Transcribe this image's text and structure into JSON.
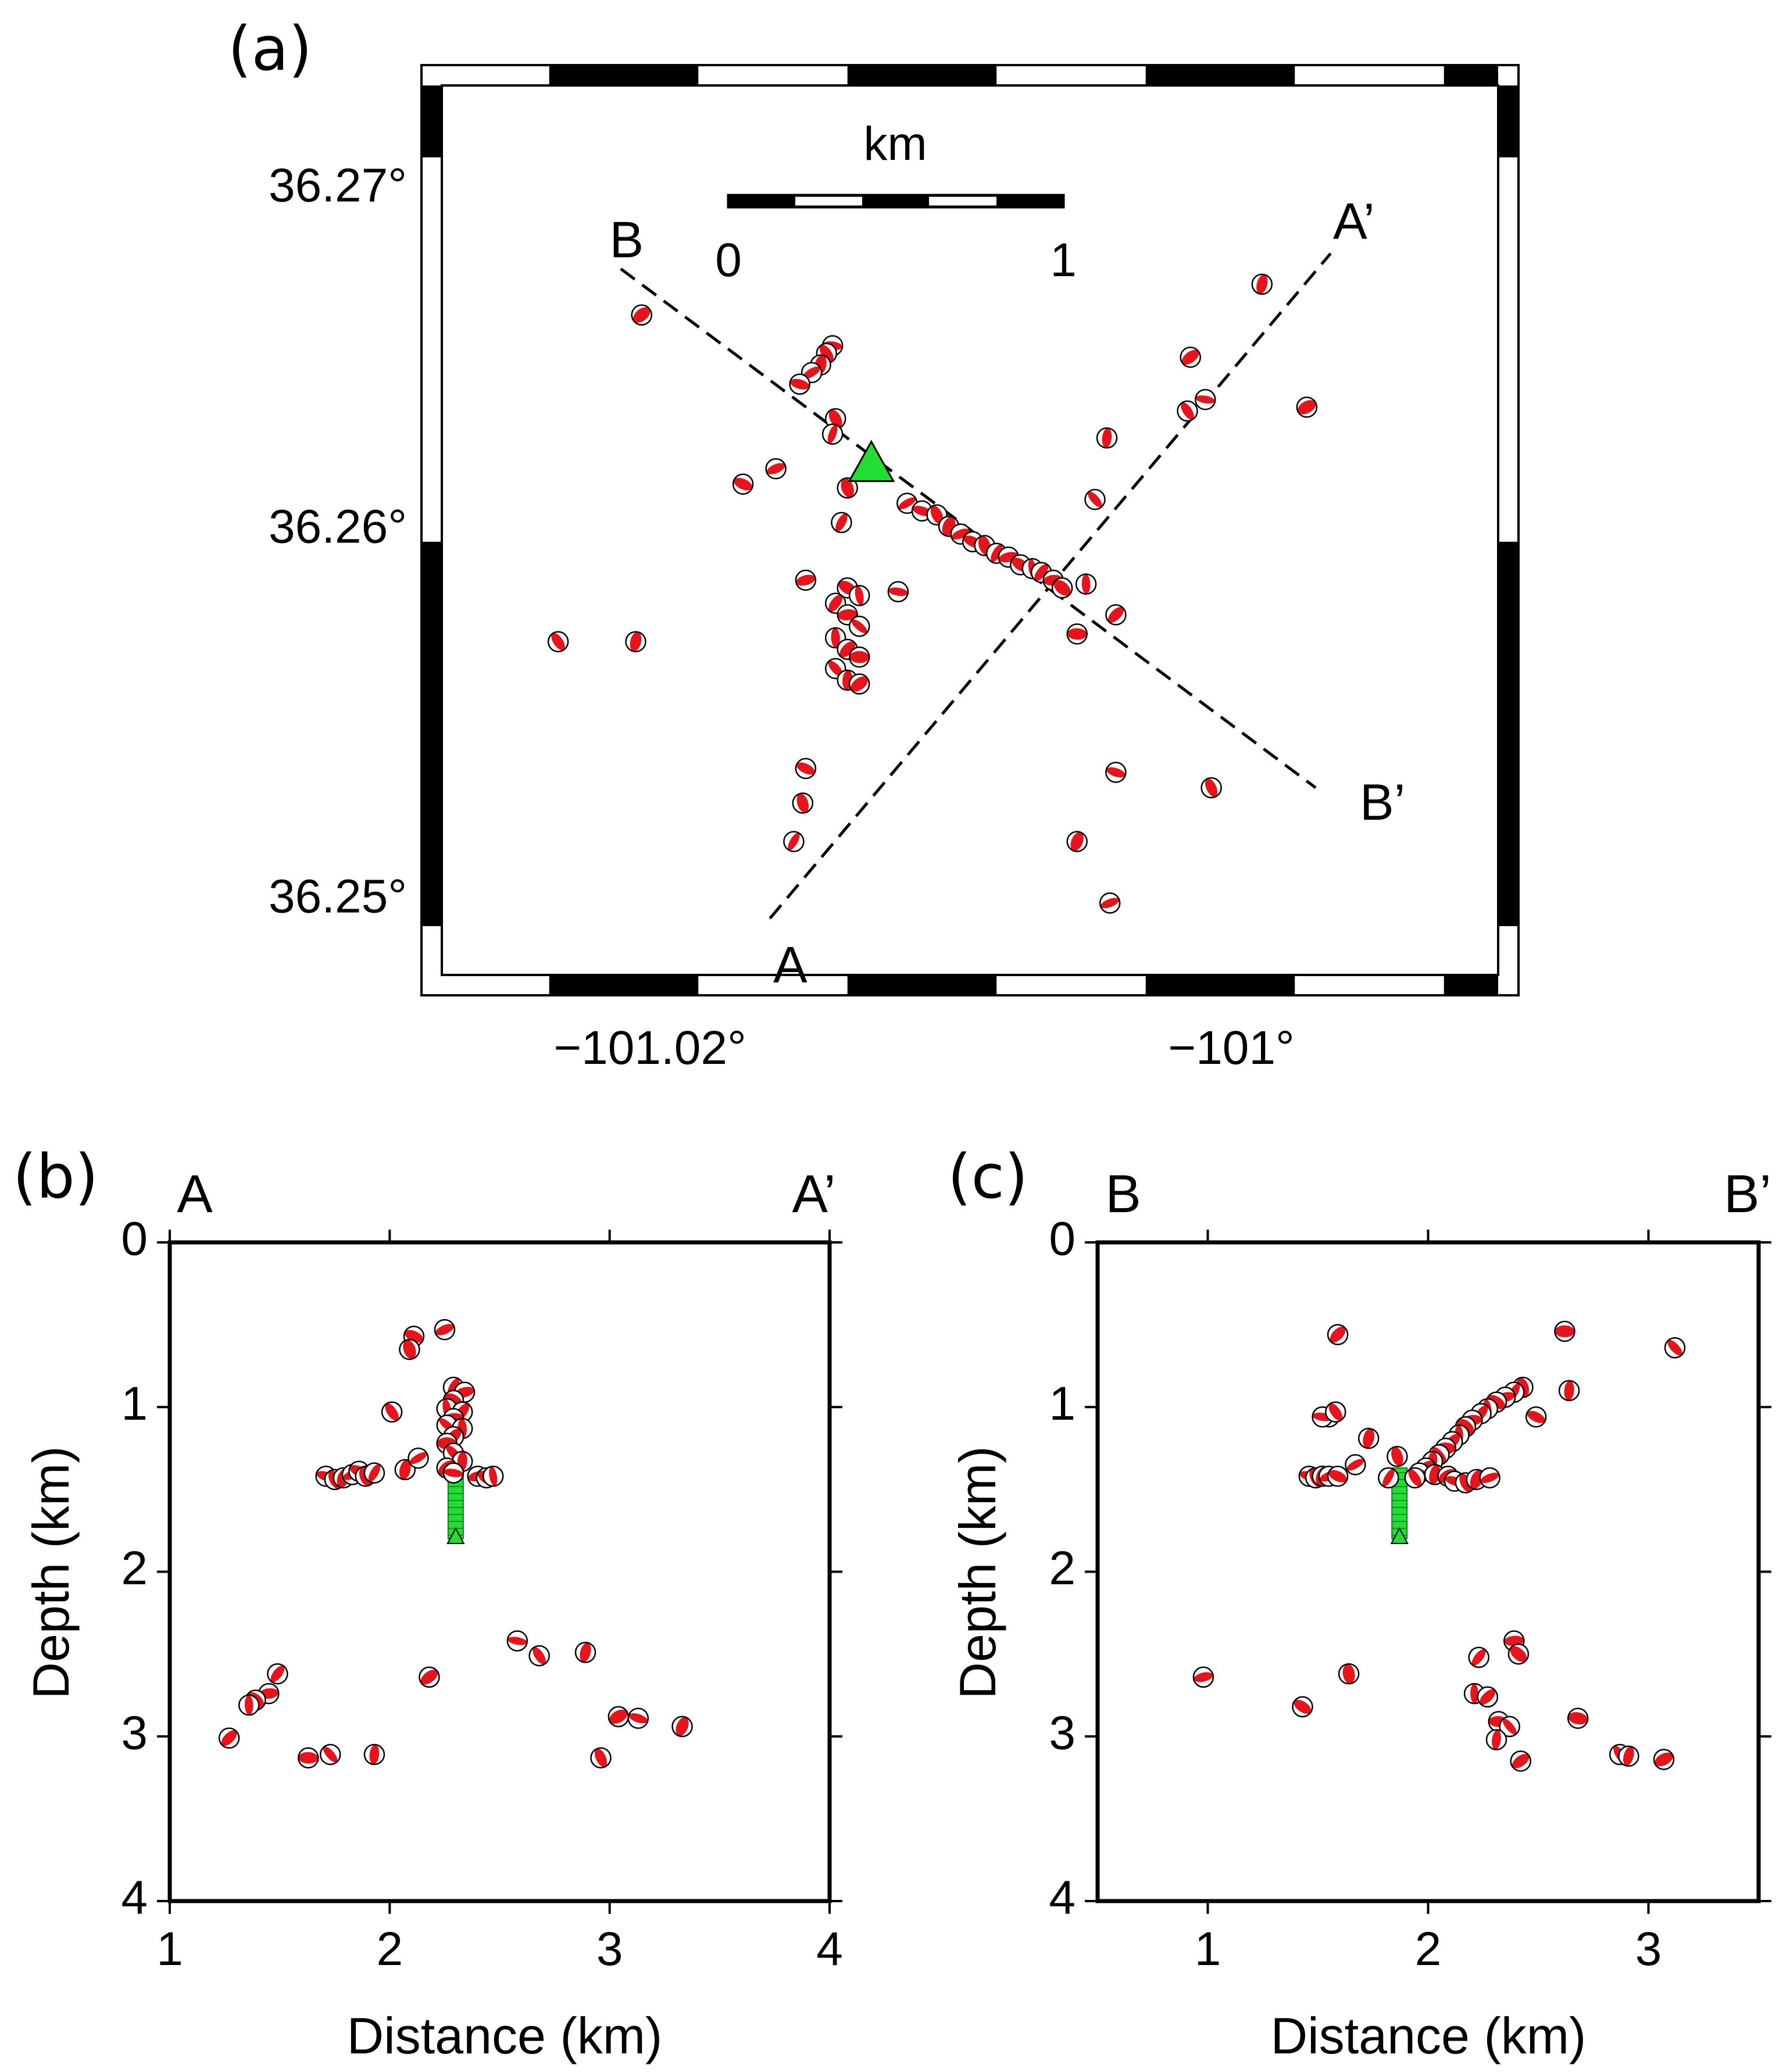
{
  "figure": {
    "colors": {
      "beachball_fill": "#e8141c",
      "beachball_outline": "#000000",
      "injection_well": "#22dd33",
      "frame": "#000000"
    }
  },
  "chart_data": [
    {
      "type": "scatter",
      "panel_label": "(a)",
      "title": "",
      "xlabel": "",
      "ylabel": "",
      "xlim": [
        -101.0286,
        -100.9925
      ],
      "ylim": [
        36.2482,
        36.2724
      ],
      "x_tick_values": [
        -101.02,
        -101
      ],
      "x_tick_labels": [
        "−101.02°",
        "−101°"
      ],
      "y_tick_values": [
        36.27,
        36.26,
        36.25
      ],
      "y_tick_labels": [
        "36.27°",
        "36.26°",
        "36.25°"
      ],
      "scale_bar": {
        "title": "km",
        "labels": [
          "0",
          "1"
        ],
        "length_km": 1
      },
      "profiles": [
        {
          "name": "A-A'",
          "start_label": "A",
          "end_label": "A’",
          "start": [
            -101.0176,
            36.2502
          ],
          "end": [
            -100.9988,
            36.2675
          ]
        },
        {
          "name": "B-B'",
          "start_label": "B",
          "end_label": "B’",
          "start": [
            -101.0226,
            36.2671
          ],
          "end": [
            -100.9993,
            36.2536
          ]
        }
      ],
      "injection_well": [
        -101.0142,
        36.262
      ],
      "events_lonlat": [
        [
          -101.0219,
          36.2659
        ],
        [
          -101.0155,
          36.2651
        ],
        [
          -101.0157,
          36.2649
        ],
        [
          -101.0159,
          36.2646
        ],
        [
          -101.0162,
          36.2644
        ],
        [
          -101.0166,
          36.2641
        ],
        [
          -101.0154,
          36.2632
        ],
        [
          -101.0155,
          36.2628
        ],
        [
          -101.0174,
          36.2619
        ],
        [
          -101.0185,
          36.2615
        ],
        [
          -101.015,
          36.2614
        ],
        [
          -101.0152,
          36.2605
        ],
        [
          -101.0164,
          36.259
        ],
        [
          -101.015,
          36.2588
        ],
        [
          -101.0146,
          36.2586
        ],
        [
          -101.0154,
          36.2584
        ],
        [
          -101.015,
          36.2581
        ],
        [
          -101.0146,
          36.2578
        ],
        [
          -101.0154,
          36.2575
        ],
        [
          -101.015,
          36.2572
        ],
        [
          -101.0146,
          36.257
        ],
        [
          -101.0154,
          36.2567
        ],
        [
          -101.015,
          36.2564
        ],
        [
          -101.0146,
          36.2563
        ],
        [
          -101.0133,
          36.2587
        ],
        [
          -101.0247,
          36.2574
        ],
        [
          -101.0221,
          36.2574
        ],
        [
          -101.013,
          36.261
        ],
        [
          -101.0125,
          36.2608
        ],
        [
          -101.012,
          36.2607
        ],
        [
          -101.0116,
          36.2604
        ],
        [
          -101.0112,
          36.2602
        ],
        [
          -101.0108,
          36.26
        ],
        [
          -101.0104,
          36.2599
        ],
        [
          -101.01,
          36.2597
        ],
        [
          -101.0096,
          36.2596
        ],
        [
          -101.0092,
          36.2594
        ],
        [
          -101.0088,
          36.2593
        ],
        [
          -101.0085,
          36.2592
        ],
        [
          -101.0081,
          36.259
        ],
        [
          -101.0078,
          36.2588
        ],
        [
          -101.007,
          36.2589
        ],
        [
          -101.006,
          36.2581
        ],
        [
          -101.0073,
          36.2576
        ],
        [
          -101.0067,
          36.2611
        ],
        [
          -101.0063,
          36.2627
        ],
        [
          -101.0035,
          36.2648
        ],
        [
          -101.003,
          36.2637
        ],
        [
          -101.0036,
          36.2634
        ],
        [
          -101.0011,
          36.2667
        ],
        [
          -100.9996,
          36.2635
        ],
        [
          -101.006,
          36.254
        ],
        [
          -101.0028,
          36.2536
        ],
        [
          -101.0073,
          36.2522
        ],
        [
          -101.0062,
          36.2506
        ],
        [
          -101.0164,
          36.2541
        ],
        [
          -101.0165,
          36.2532
        ],
        [
          -101.0168,
          36.2522
        ]
      ]
    },
    {
      "type": "scatter",
      "panel_label": "(b)",
      "start_label": "A",
      "end_label": "A’",
      "title": "",
      "xlabel": "Distance (km)",
      "ylabel": "Depth (km)",
      "xlim": [
        1,
        4
      ],
      "ylim": [
        4,
        0
      ],
      "x_tick_labels": [
        "1",
        "2",
        "3",
        "4"
      ],
      "y_tick_labels": [
        "0",
        "1",
        "2",
        "3",
        "4"
      ],
      "injection_interval": {
        "x": 2.3,
        "top_depth": 1.37,
        "bottom_depth": 1.8
      },
      "events": [
        [
          2.25,
          0.53
        ],
        [
          2.11,
          0.57
        ],
        [
          2.09,
          0.65
        ],
        [
          2.29,
          0.88
        ],
        [
          2.34,
          0.91
        ],
        [
          2.29,
          0.96
        ],
        [
          2.26,
          1.01
        ],
        [
          2.33,
          1.03
        ],
        [
          2.29,
          1.07
        ],
        [
          2.26,
          1.11
        ],
        [
          2.33,
          1.13
        ],
        [
          2.29,
          1.18
        ],
        [
          2.26,
          1.22
        ],
        [
          2.29,
          1.28
        ],
        [
          2.33,
          1.33
        ],
        [
          2.26,
          1.37
        ],
        [
          2.29,
          1.4
        ],
        [
          2.01,
          1.03
        ],
        [
          2.07,
          1.38
        ],
        [
          2.13,
          1.31
        ],
        [
          1.71,
          1.42
        ],
        [
          1.75,
          1.44
        ],
        [
          1.79,
          1.43
        ],
        [
          1.83,
          1.41
        ],
        [
          1.86,
          1.39
        ],
        [
          1.89,
          1.42
        ],
        [
          1.93,
          1.4
        ],
        [
          2.4,
          1.42
        ],
        [
          2.44,
          1.43
        ],
        [
          2.47,
          1.42
        ],
        [
          1.49,
          2.62
        ],
        [
          1.45,
          2.74
        ],
        [
          1.39,
          2.78
        ],
        [
          1.36,
          2.81
        ],
        [
          1.27,
          3.01
        ],
        [
          1.63,
          3.13
        ],
        [
          1.73,
          3.11
        ],
        [
          1.93,
          3.11
        ],
        [
          2.18,
          2.64
        ],
        [
          2.58,
          2.42
        ],
        [
          2.68,
          2.51
        ],
        [
          2.89,
          2.49
        ],
        [
          3.04,
          2.88
        ],
        [
          3.13,
          2.89
        ],
        [
          2.96,
          3.13
        ],
        [
          3.33,
          2.94
        ]
      ]
    },
    {
      "type": "scatter",
      "panel_label": "(c)",
      "start_label": "B",
      "end_label": "B’",
      "title": "",
      "xlabel": "Distance (km)",
      "ylabel": "Depth (km)",
      "xlim": [
        0.5,
        3.5
      ],
      "ylim": [
        4,
        0
      ],
      "x_tick_labels": [
        "1",
        "2",
        "3"
      ],
      "y_tick_labels": [
        "0",
        "1",
        "2",
        "3",
        "4"
      ],
      "injection_interval": {
        "x": 1.87,
        "top_depth": 1.37,
        "bottom_depth": 1.8
      },
      "events": [
        [
          1.59,
          0.56
        ],
        [
          2.62,
          0.54
        ],
        [
          3.12,
          0.64
        ],
        [
          2.64,
          0.9
        ],
        [
          1.55,
          1.06
        ],
        [
          1.52,
          1.06
        ],
        [
          1.58,
          1.03
        ],
        [
          1.73,
          1.19
        ],
        [
          1.67,
          1.35
        ],
        [
          1.46,
          1.42
        ],
        [
          1.49,
          1.43
        ],
        [
          1.52,
          1.42
        ],
        [
          1.55,
          1.42
        ],
        [
          1.59,
          1.42
        ],
        [
          2.43,
          0.88
        ],
        [
          2.39,
          0.91
        ],
        [
          2.35,
          0.94
        ],
        [
          2.31,
          0.97
        ],
        [
          2.27,
          1.01
        ],
        [
          2.24,
          1.04
        ],
        [
          2.2,
          1.08
        ],
        [
          2.17,
          1.12
        ],
        [
          2.14,
          1.17
        ],
        [
          2.11,
          1.21
        ],
        [
          2.08,
          1.25
        ],
        [
          2.05,
          1.29
        ],
        [
          2.02,
          1.33
        ],
        [
          1.99,
          1.37
        ],
        [
          1.96,
          1.4
        ],
        [
          1.94,
          1.43
        ],
        [
          2.03,
          1.41
        ],
        [
          2.09,
          1.42
        ],
        [
          2.12,
          1.45
        ],
        [
          2.17,
          1.46
        ],
        [
          2.22,
          1.44
        ],
        [
          2.28,
          1.43
        ],
        [
          2.49,
          1.06
        ],
        [
          1.86,
          1.3
        ],
        [
          1.82,
          1.43
        ],
        [
          0.98,
          2.64
        ],
        [
          1.43,
          2.82
        ],
        [
          1.64,
          2.62
        ],
        [
          2.23,
          2.52
        ],
        [
          2.39,
          2.42
        ],
        [
          2.41,
          2.5
        ],
        [
          2.21,
          2.74
        ],
        [
          2.27,
          2.76
        ],
        [
          2.32,
          2.91
        ],
        [
          2.37,
          2.94
        ],
        [
          2.31,
          3.02
        ],
        [
          2.42,
          3.15
        ],
        [
          2.68,
          2.89
        ],
        [
          2.87,
          3.11
        ],
        [
          2.91,
          3.12
        ],
        [
          3.07,
          3.14
        ]
      ]
    }
  ]
}
